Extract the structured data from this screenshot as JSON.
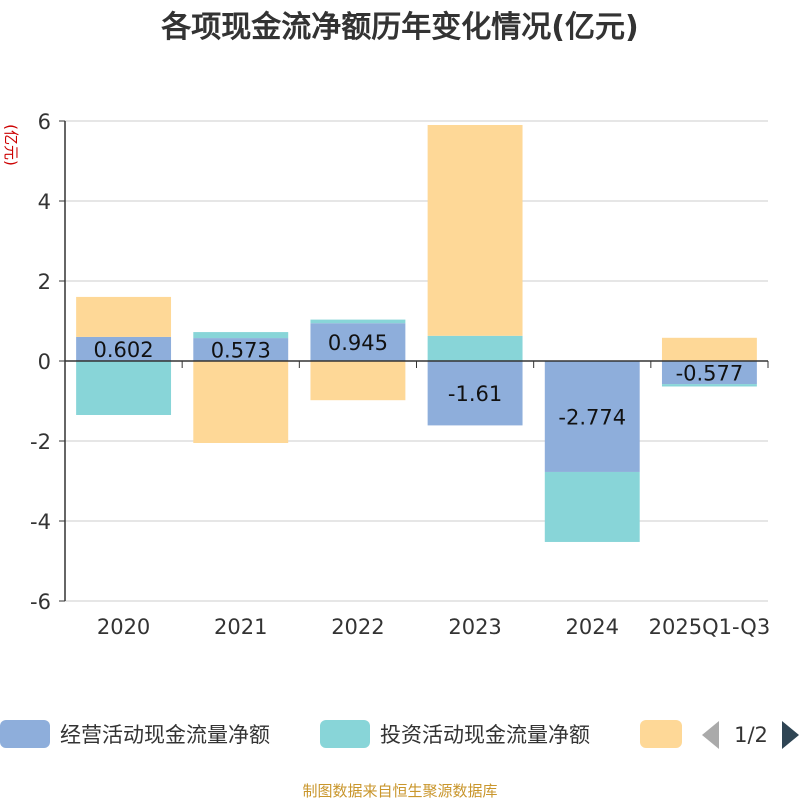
{
  "chart_data": {
    "type": "bar",
    "stacked": true,
    "title": "各项现金流净额历年变化情况(亿元)",
    "ylabel": "(亿元)",
    "categories": [
      "2020",
      "2021",
      "2022",
      "2023",
      "2024",
      "2025Q1-Q3"
    ],
    "ylim": [
      -6,
      6
    ],
    "yticks": [
      "6",
      "4",
      "2",
      "0",
      "-2",
      "-4",
      "-6"
    ],
    "ytick_values": [
      6,
      4,
      2,
      0,
      -2,
      -4,
      -6
    ],
    "grid": true,
    "series": [
      {
        "name": "经营活动现金流量净额",
        "color": "#8eaedb",
        "values": [
          0.602,
          0.573,
          0.945,
          -1.61,
          -2.774,
          -0.577
        ],
        "labels": [
          "0.602",
          "0.573",
          "0.945",
          "-1.61",
          "-2.774",
          "-0.577"
        ]
      },
      {
        "name": "投资活动现金流量净额",
        "color": "#88d5d8",
        "values": [
          -1.35,
          0.15,
          0.09,
          0.63,
          -1.75,
          -0.06
        ]
      },
      {
        "name": "",
        "color": "#fed897",
        "values": [
          1.0,
          -2.05,
          -0.98,
          5.27,
          0,
          0.58
        ]
      }
    ],
    "legend": {
      "placement": "bottom",
      "page": "1/2"
    }
  },
  "footer": {
    "source": "制图数据来自恒生聚源数据库"
  }
}
